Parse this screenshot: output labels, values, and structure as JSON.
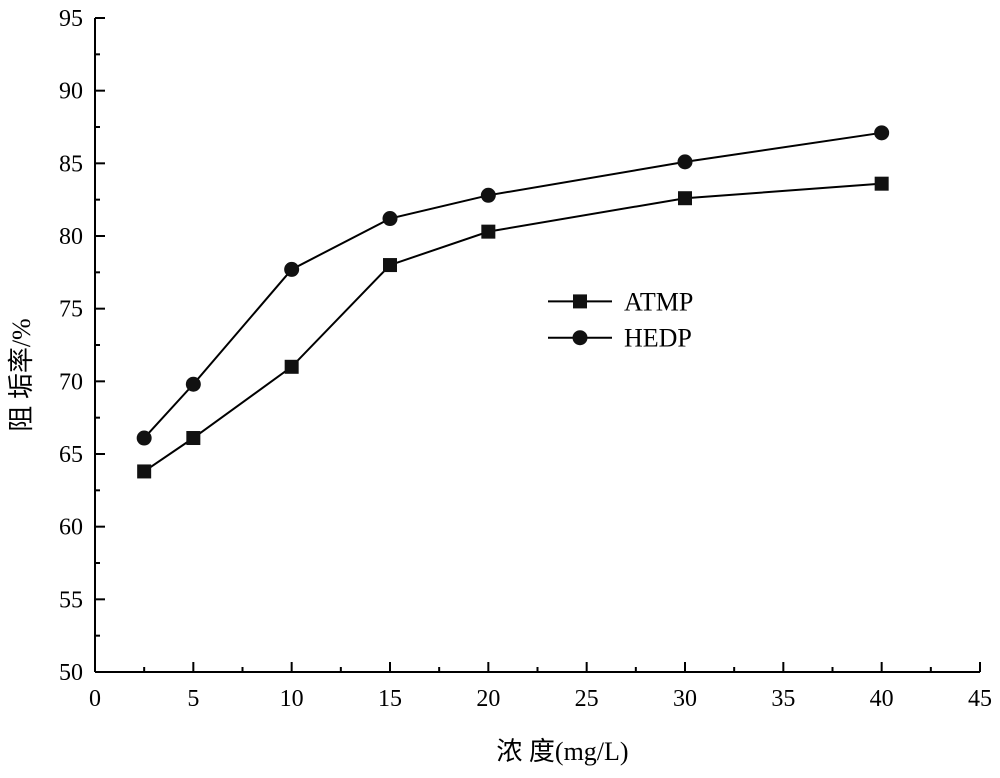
{
  "chart_data": {
    "type": "line",
    "title": "",
    "xlabel": "浓 度(mg/L)",
    "ylabel": "阻 垢率/%",
    "xlim": [
      0,
      45
    ],
    "ylim": [
      50,
      95
    ],
    "xticks": [
      0,
      5,
      10,
      15,
      20,
      25,
      30,
      35,
      40,
      45
    ],
    "yticks": [
      50,
      55,
      60,
      65,
      70,
      75,
      80,
      85,
      90,
      95
    ],
    "grid": false,
    "legend_position": "center-right",
    "x": [
      2.5,
      5,
      10,
      15,
      20,
      30,
      40
    ],
    "series": [
      {
        "name": "ATMP",
        "marker": "square",
        "values": [
          63.8,
          66.1,
          71.0,
          78.0,
          80.3,
          82.6,
          83.6
        ]
      },
      {
        "name": "HEDP",
        "marker": "circle",
        "values": [
          66.1,
          69.8,
          77.7,
          81.2,
          82.8,
          85.1,
          87.1
        ]
      }
    ],
    "colors": {
      "line": "#000000",
      "marker": "#111111"
    }
  }
}
